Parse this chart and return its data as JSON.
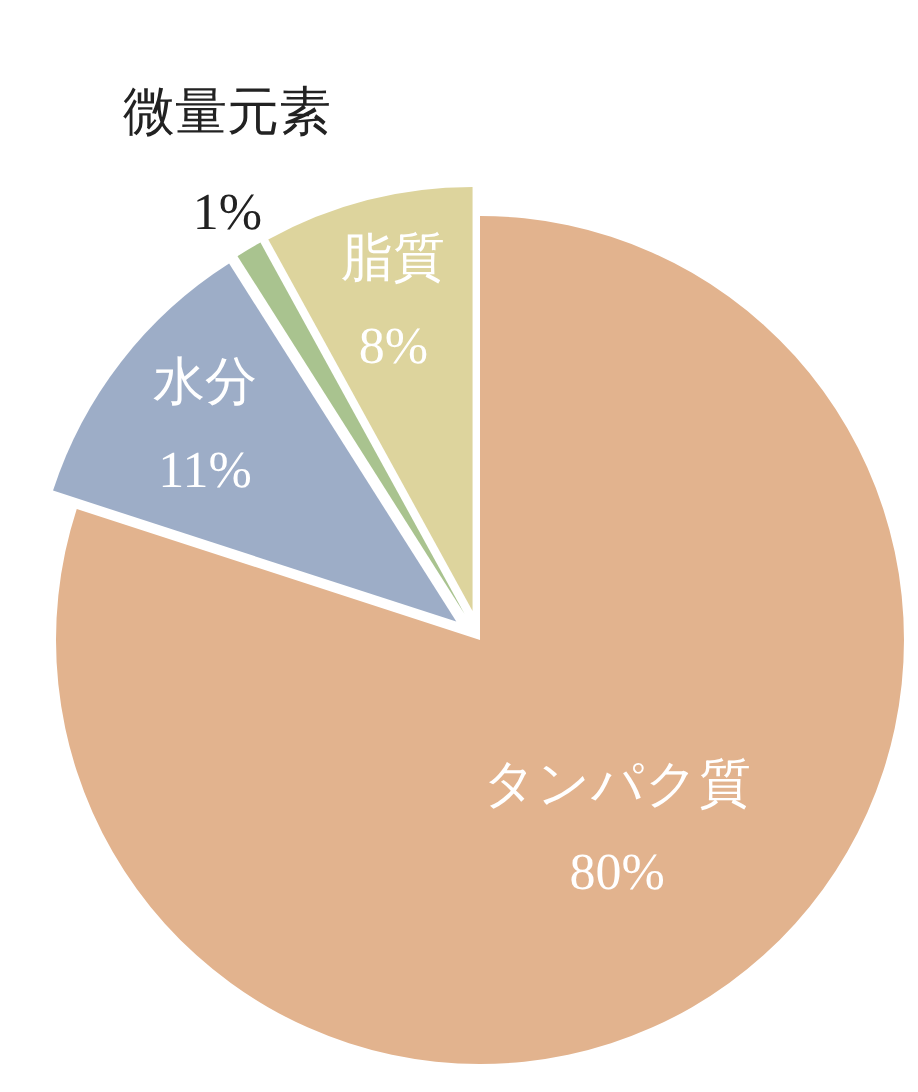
{
  "chart_data": {
    "type": "pie",
    "categories": [
      "タンパク質",
      "水分",
      "微量元素",
      "脂質"
    ],
    "values": [
      80,
      11,
      1,
      8
    ],
    "colors": [
      "#e2b38e",
      "#9dadc7",
      "#a9c38f",
      "#ddd49d"
    ],
    "value_labels": [
      "80%",
      "11%",
      "1%",
      "8%"
    ],
    "legend": false
  }
}
